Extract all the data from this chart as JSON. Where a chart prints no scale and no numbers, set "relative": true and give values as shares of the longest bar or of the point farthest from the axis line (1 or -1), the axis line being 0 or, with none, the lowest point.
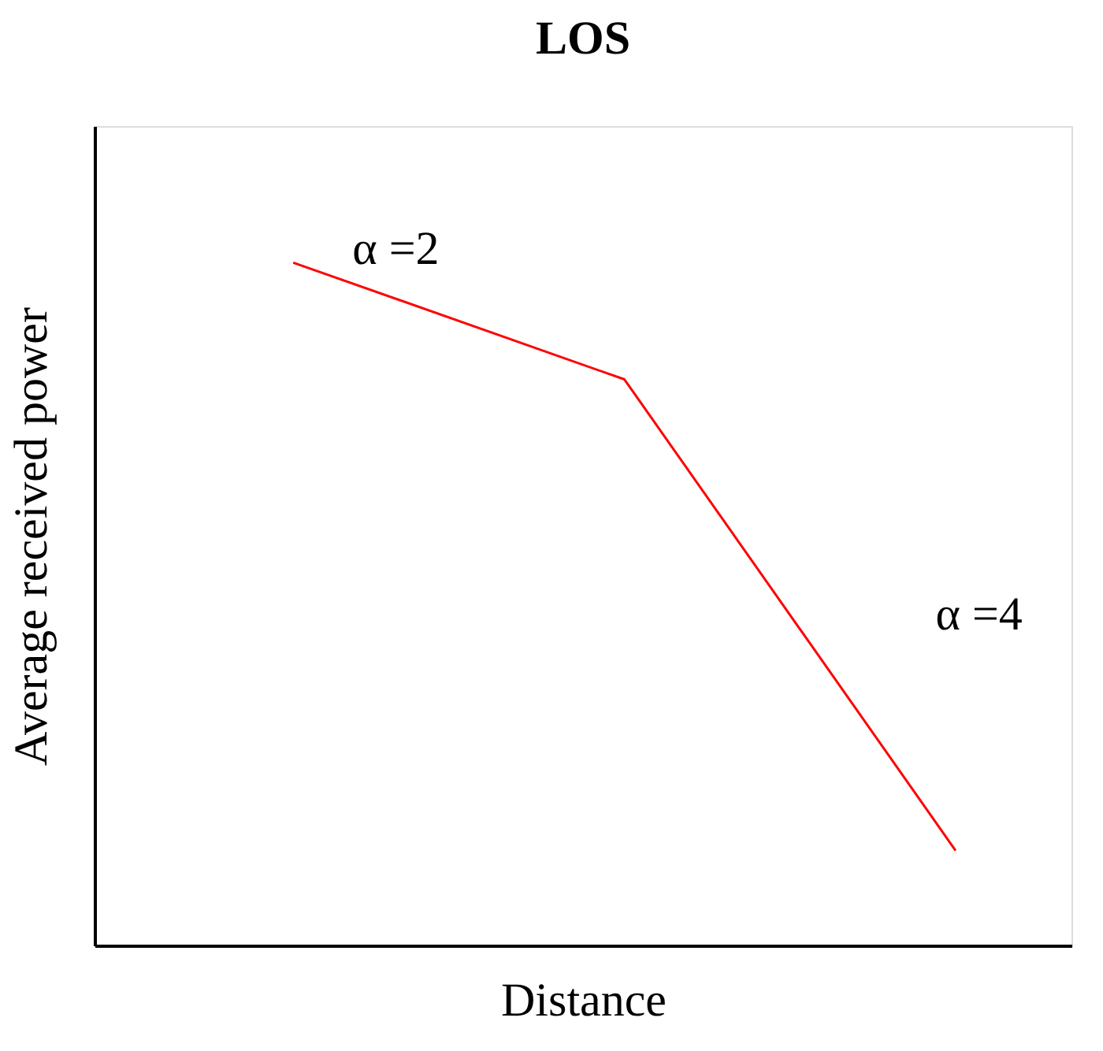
{
  "chart_data": {
    "type": "line",
    "title": "LOS",
    "xlabel": "Distance",
    "ylabel": "Average received power",
    "relative": true,
    "tick_labels": false,
    "grid": false,
    "legend": false,
    "marker": "none",
    "line_style": "solid",
    "categories": [
      null,
      null,
      null
    ],
    "series": [
      {
        "color": "#ff0000",
        "values": [
          1,
          0.829,
          0.139
        ]
      }
    ],
    "annotations": [
      "α =2",
      "α =4"
    ]
  }
}
